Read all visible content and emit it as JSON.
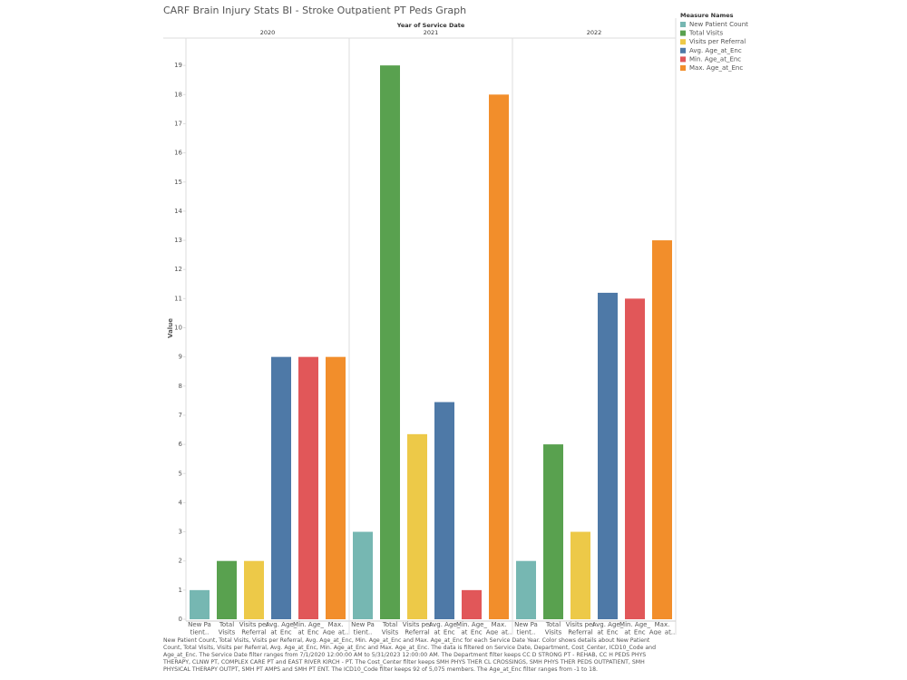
{
  "chart_data": {
    "type": "bar",
    "title": "CARF Brain Injury Stats BI - Stroke Outpatient PT Peds Graph",
    "column_header": "Year of Service Date",
    "categories": [
      "2020",
      "2021",
      "2022"
    ],
    "y_label": "Value",
    "ylim": [
      0,
      20
    ],
    "yticks": [
      0,
      1,
      2,
      3,
      4,
      5,
      6,
      7,
      8,
      9,
      10,
      11,
      12,
      13,
      14,
      15,
      16,
      17,
      18,
      19
    ],
    "grid": false,
    "legend_title": "Measure Names",
    "legend_position": "right",
    "series": [
      {
        "name": "New Patient Count",
        "axis_label": [
          "New Pa",
          "tient.."
        ],
        "color": "#76b7b2",
        "values": [
          1,
          3,
          2
        ]
      },
      {
        "name": "Total Visits",
        "axis_label": [
          "Total",
          "Visits"
        ],
        "color": "#59a14f",
        "values": [
          2,
          19,
          6
        ]
      },
      {
        "name": "Visits per Referral",
        "axis_label": [
          "Visits per",
          "Referral"
        ],
        "color": "#edc948",
        "values": [
          2,
          6.35,
          3
        ]
      },
      {
        "name": "Avg. Age_at_Enc",
        "axis_label": [
          "Avg. Age_",
          "at_Enc"
        ],
        "color": "#4e79a7",
        "values": [
          9,
          7.45,
          11.2
        ]
      },
      {
        "name": "Min. Age_at_Enc",
        "axis_label": [
          "Min. Age_",
          "at_Enc"
        ],
        "color": "#e15759",
        "values": [
          9,
          1,
          11
        ]
      },
      {
        "name": "Max. Age_at_Enc",
        "axis_label": [
          "Max.",
          "Age_at.."
        ],
        "color": "#f28e2b",
        "values": [
          9,
          18,
          13
        ]
      }
    ],
    "caption": "New Patient Count, Total Visits, Visits per Referral, Avg. Age_at_Enc, Min. Age_at_Enc and Max. Age_at_Enc for each Service Date Year.  Color shows details about New Patient Count, Total Visits, Visits per Referral, Avg. Age_at_Enc, Min. Age_at_Enc and Max. Age_at_Enc. The data is filtered on Service Date, Department, Cost_Center, ICD10_Code and Age_at_Enc. The Service Date filter ranges from 7/1/2020 12:00:00 AM to 5/31/2023 12:00:00 AM. The Department filter keeps CC D STRONG PT - REHAB, CC H PEDS PHYS THERAPY, CLNW PT, COMPLEX CARE PT and EAST RIVER KIRCH - PT. The Cost_Center filter keeps SMH PHYS THER CL CROSSINGS, SMH PHYS THER PEDS OUTPATIENT, SMH PHYSICAL THERAPY OUTPT, SMH PT AMPS and SMH PT ENT. The ICD10_Code filter keeps 92 of 5,075 members. The Age_at_Enc filter ranges from -1 to 18."
  }
}
